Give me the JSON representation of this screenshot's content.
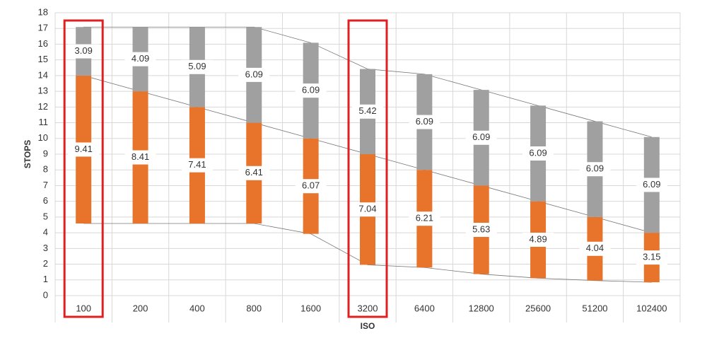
{
  "chart_data": {
    "type": "floating-stacked-bar",
    "x_label": "ISO",
    "y_label": "STOPS",
    "categories": [
      "100",
      "200",
      "400",
      "800",
      "1600",
      "3200",
      "6400",
      "12800",
      "25600",
      "51200",
      "102400"
    ],
    "series": [
      {
        "color": "#e8732a",
        "base": [
          4.59,
          4.59,
          4.59,
          4.59,
          3.93,
          1.96,
          1.79,
          1.37,
          1.11,
          0.96,
          0.85
        ],
        "values": [
          9.41,
          8.41,
          7.41,
          6.41,
          6.07,
          7.04,
          6.21,
          5.63,
          4.89,
          4.04,
          3.15
        ]
      },
      {
        "color": "#a0a0a0",
        "values": [
          3.09,
          4.09,
          5.09,
          6.09,
          6.09,
          5.42,
          6.09,
          6.09,
          6.09,
          6.09,
          6.09
        ]
      }
    ],
    "ylim": [
      0,
      18
    ],
    "yticks": [
      0,
      1,
      2,
      3,
      4,
      5,
      6,
      7,
      8,
      9,
      10,
      11,
      12,
      13,
      14,
      15,
      16,
      17,
      18
    ],
    "grid": true,
    "highlight_color": "#e02020",
    "highlighted": [
      0,
      5
    ]
  }
}
